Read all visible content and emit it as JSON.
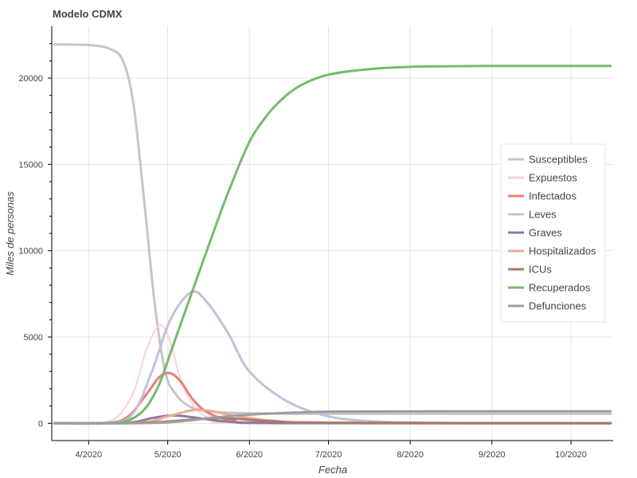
{
  "chart_data": {
    "type": "line",
    "title": "Modelo CDMX",
    "xlabel": "Fecha",
    "ylabel": "Miles de personas",
    "x_ticks": [
      "4/2020",
      "5/2020",
      "6/2020",
      "7/2020",
      "8/2020",
      "9/2020",
      "10/2020"
    ],
    "y_ticks": [
      0,
      5000,
      10000,
      15000,
      20000
    ],
    "xlim": [
      "2020-03-18",
      "2020-10-17"
    ],
    "ylim": [
      -1000,
      23000
    ],
    "grid": true,
    "legend_position": "right",
    "series": [
      {
        "name": "Susceptibles",
        "color": "#c6c6c6",
        "width": 3,
        "points": [
          [
            "2020-03-19",
            21950
          ],
          [
            "2020-03-26",
            21940
          ],
          [
            "2020-04-02",
            21900
          ],
          [
            "2020-04-09",
            21700
          ],
          [
            "2020-04-14",
            21000
          ],
          [
            "2020-04-18",
            18500
          ],
          [
            "2020-04-22",
            13000
          ],
          [
            "2020-04-26",
            7000
          ],
          [
            "2020-04-30",
            3000
          ],
          [
            "2020-05-04",
            1700
          ],
          [
            "2020-05-09",
            1000
          ],
          [
            "2020-05-16",
            700
          ],
          [
            "2020-05-26",
            600
          ],
          [
            "2020-06-15",
            560
          ],
          [
            "2020-07-15",
            550
          ],
          [
            "2020-10-16",
            550
          ]
        ]
      },
      {
        "name": "Expuestos",
        "color": "#fdd0d8",
        "width": 2,
        "points": [
          [
            "2020-03-19",
            0
          ],
          [
            "2020-04-05",
            30
          ],
          [
            "2020-04-12",
            400
          ],
          [
            "2020-04-18",
            1800
          ],
          [
            "2020-04-23",
            4300
          ],
          [
            "2020-04-28",
            5700
          ],
          [
            "2020-05-02",
            4700
          ],
          [
            "2020-05-06",
            2500
          ],
          [
            "2020-05-12",
            800
          ],
          [
            "2020-05-20",
            150
          ],
          [
            "2020-06-01",
            30
          ],
          [
            "2020-10-16",
            0
          ]
        ]
      },
      {
        "name": "Infectados",
        "color": "#ef7b73",
        "width": 3,
        "points": [
          [
            "2020-03-19",
            0
          ],
          [
            "2020-04-08",
            30
          ],
          [
            "2020-04-16",
            400
          ],
          [
            "2020-04-23",
            1700
          ],
          [
            "2020-04-28",
            2700
          ],
          [
            "2020-05-02",
            2900
          ],
          [
            "2020-05-06",
            2400
          ],
          [
            "2020-05-11",
            1300
          ],
          [
            "2020-05-17",
            550
          ],
          [
            "2020-05-26",
            150
          ],
          [
            "2020-06-10",
            30
          ],
          [
            "2020-10-16",
            0
          ]
        ]
      },
      {
        "name": "Leves",
        "color": "#c4bfdc",
        "width": 3,
        "points": [
          [
            "2020-03-19",
            0
          ],
          [
            "2020-04-10",
            50
          ],
          [
            "2020-04-18",
            600
          ],
          [
            "2020-04-25",
            3000
          ],
          [
            "2020-05-02",
            6000
          ],
          [
            "2020-05-10",
            7600
          ],
          [
            "2020-05-16",
            7000
          ],
          [
            "2020-05-24",
            5200
          ],
          [
            "2020-06-01",
            3000
          ],
          [
            "2020-06-15",
            1300
          ],
          [
            "2020-07-01",
            400
          ],
          [
            "2020-07-20",
            100
          ],
          [
            "2020-08-15",
            20
          ],
          [
            "2020-10-16",
            0
          ]
        ]
      },
      {
        "name": "Graves",
        "color": "#8f78ab",
        "width": 3,
        "points": [
          [
            "2020-03-19",
            0
          ],
          [
            "2020-04-15",
            30
          ],
          [
            "2020-04-25",
            300
          ],
          [
            "2020-05-02",
            450
          ],
          [
            "2020-05-08",
            400
          ],
          [
            "2020-05-15",
            250
          ],
          [
            "2020-05-25",
            80
          ],
          [
            "2020-06-15",
            10
          ],
          [
            "2020-10-16",
            0
          ]
        ]
      },
      {
        "name": "Hospitalizados",
        "color": "#e7b18f",
        "width": 3,
        "points": [
          [
            "2020-03-19",
            0
          ],
          [
            "2020-04-20",
            40
          ],
          [
            "2020-05-01",
            400
          ],
          [
            "2020-05-10",
            750
          ],
          [
            "2020-05-17",
            720
          ],
          [
            "2020-05-26",
            450
          ],
          [
            "2020-06-10",
            150
          ],
          [
            "2020-07-01",
            40
          ],
          [
            "2020-10-16",
            0
          ]
        ]
      },
      {
        "name": "ICUs",
        "color": "#a77b68",
        "width": 3,
        "points": [
          [
            "2020-03-19",
            0
          ],
          [
            "2020-04-20",
            20
          ],
          [
            "2020-05-05",
            150
          ],
          [
            "2020-05-18",
            300
          ],
          [
            "2020-05-28",
            250
          ],
          [
            "2020-06-10",
            120
          ],
          [
            "2020-07-01",
            30
          ],
          [
            "2020-10-16",
            0
          ]
        ]
      },
      {
        "name": "Recuperados",
        "color": "#74bb6c",
        "width": 3,
        "points": [
          [
            "2020-03-19",
            0
          ],
          [
            "2020-04-10",
            20
          ],
          [
            "2020-04-20",
            500
          ],
          [
            "2020-04-27",
            2000
          ],
          [
            "2020-05-03",
            4500
          ],
          [
            "2020-05-10",
            7500
          ],
          [
            "2020-05-17",
            10500
          ],
          [
            "2020-05-24",
            13400
          ],
          [
            "2020-06-01",
            16300
          ],
          [
            "2020-06-08",
            17900
          ],
          [
            "2020-06-15",
            19000
          ],
          [
            "2020-06-22",
            19700
          ],
          [
            "2020-07-01",
            20200
          ],
          [
            "2020-07-15",
            20500
          ],
          [
            "2020-08-01",
            20650
          ],
          [
            "2020-09-01",
            20700
          ],
          [
            "2020-10-16",
            20700
          ]
        ]
      },
      {
        "name": "Defunciones",
        "color": "#9d9d9d",
        "width": 3,
        "points": [
          [
            "2020-03-19",
            0
          ],
          [
            "2020-04-25",
            20
          ],
          [
            "2020-05-08",
            150
          ],
          [
            "2020-05-20",
            350
          ],
          [
            "2020-06-01",
            500
          ],
          [
            "2020-06-15",
            600
          ],
          [
            "2020-07-01",
            670
          ],
          [
            "2020-08-01",
            690
          ],
          [
            "2020-10-16",
            700
          ]
        ]
      }
    ]
  }
}
